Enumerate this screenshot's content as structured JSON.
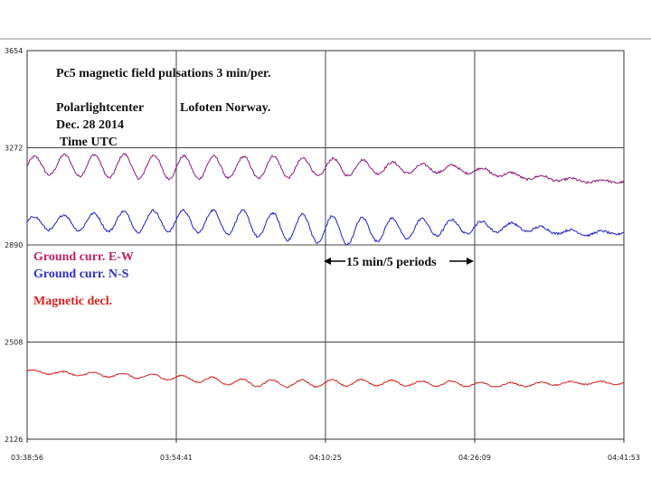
{
  "chart_data": {
    "type": "line",
    "ylim": [
      2126,
      3654
    ],
    "y_ticks": [
      "3654",
      "3272",
      "2890",
      "2508",
      "2126"
    ],
    "x_ticks": [
      "03:38:56",
      "03:54:41",
      "04:10:25",
      "04:26:09",
      "04:41:53"
    ],
    "grid": true,
    "annotations": {
      "title": "Pc5 magnetic field   pulsations  3 min/per.",
      "location_org": "Polarlightcenter",
      "location_place": "Lofoten  Norway.",
      "date": "Dec. 28  2014",
      "time_label": "Time UTC",
      "period_label": "15 min/5 periods"
    },
    "legend": [
      {
        "label": "Ground curr. E-W",
        "color": "#c0206a"
      },
      {
        "label": "Ground curr. N-S",
        "color": "#3030c0"
      },
      {
        "label": "Magnetic decl.",
        "color": "#e02020"
      }
    ],
    "series": [
      {
        "name": "Ground curr. E-W",
        "color": "#8a1a7a",
        "mean": [
          3200,
          3205,
          3200,
          3200,
          3195,
          3195,
          3195,
          3195,
          3195,
          3195,
          3195,
          3190,
          3190,
          3180,
          3160,
          3150,
          3140,
          3140
        ],
        "amplitude": [
          35,
          40,
          45,
          48,
          45,
          45,
          42,
          45,
          35,
          35,
          25,
          18,
          15,
          12,
          10,
          8,
          6,
          6
        ],
        "period_min": 3.15
      },
      {
        "name": "Ground curr. N-S",
        "color": "#2020c8",
        "mean": [
          2975,
          2978,
          2980,
          2982,
          2985,
          2982,
          2978,
          2965,
          2955,
          2945,
          2950,
          2955,
          2960,
          2960,
          2960,
          2945,
          2935,
          2940
        ],
        "amplitude": [
          25,
          30,
          35,
          42,
          42,
          45,
          48,
          50,
          55,
          55,
          45,
          40,
          30,
          22,
          15,
          10,
          8,
          8
        ],
        "period_min": 3.15
      },
      {
        "name": "Magnetic decl.",
        "color": "#d02020",
        "mean": [
          2394,
          2385,
          2380,
          2375,
          2370,
          2360,
          2350,
          2345,
          2345,
          2348,
          2348,
          2345,
          2345,
          2340,
          2340,
          2345,
          2348,
          2346
        ],
        "amplitude": [
          6,
          7,
          8,
          9,
          10,
          12,
          13,
          14,
          14,
          13,
          12,
          10,
          10,
          9,
          8,
          7,
          6,
          6
        ],
        "period_min": 3.15
      }
    ]
  }
}
